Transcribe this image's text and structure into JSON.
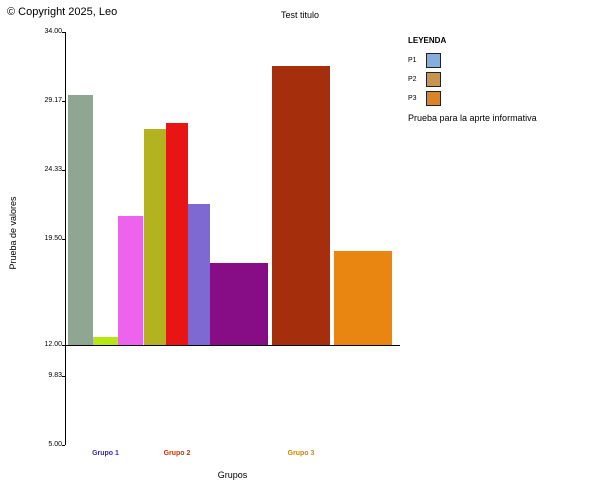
{
  "header": {
    "copyright": "© Copyright 2025, Leo",
    "title": "Test titulo"
  },
  "legend": {
    "title": "LEYENDA",
    "items": [
      {
        "label": "P1",
        "color": "#86aedc"
      },
      {
        "label": "P2",
        "color": "#c8954f"
      },
      {
        "label": "P3",
        "color": "#d98428"
      }
    ],
    "note": "Prueba para la aprte informativa"
  },
  "chart_data": {
    "type": "bar",
    "title": "Test titulo",
    "xlabel": "Grupos",
    "ylabel": "Prueba de valores",
    "ylim": [
      5.0,
      34.0
    ],
    "baseline_value": 12.0,
    "grid": false,
    "legend_position": "right",
    "y_ticks": [
      {
        "label": "34.00",
        "value": 34.0
      },
      {
        "label": "29.17",
        "value": 29.17
      },
      {
        "label": "24.33",
        "value": 24.33
      },
      {
        "label": "19.50",
        "value": 19.5
      },
      {
        "label": "12.00",
        "value": 12.0
      },
      {
        "label": "9.83",
        "value": 9.83
      },
      {
        "label": "5.00",
        "value": 5.0
      }
    ],
    "groups": [
      {
        "label": "Grupo 1",
        "label_color": "#2d2db5",
        "bars": [
          {
            "value": 29.6,
            "color": "#8fa693"
          },
          {
            "value": 12.6,
            "color": "#b8e612"
          },
          {
            "value": 21.1,
            "color": "#ee63ee"
          }
        ]
      },
      {
        "label": "Grupo 2",
        "label_color": "#cc3300",
        "bars": [
          {
            "value": 27.2,
            "color": "#b3b31f"
          },
          {
            "value": 27.6,
            "color": "#e91515"
          },
          {
            "value": 21.9,
            "color": "#7e68d2"
          }
        ]
      },
      {
        "label": "Grupo 3",
        "label_color": "#cc8800",
        "bars": [
          {
            "value": 17.8,
            "color": "#870d87"
          },
          {
            "value": 31.6,
            "color": "#a52e0d"
          },
          {
            "value": 18.6,
            "color": "#e98511"
          }
        ]
      }
    ]
  }
}
